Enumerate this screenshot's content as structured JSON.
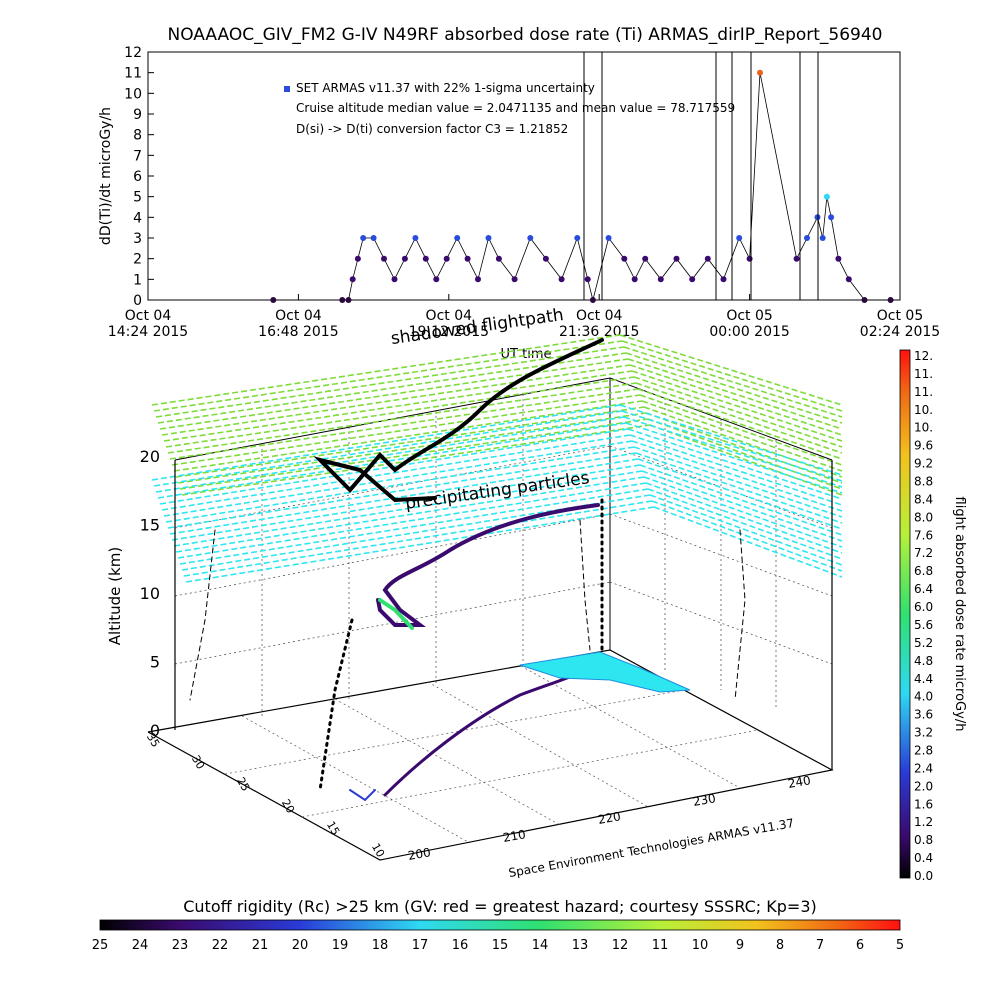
{
  "title": "NOAAAOC_GIV_FM2 G-IV    N49RF   absorbed dose rate (Ti) ARMAS_dirIP_Report_56940",
  "colors": {
    "series_marker": "#2a4bdc",
    "trace": "#4b1a8c",
    "cyan_plane": "#2ee6f0",
    "green_plane": "#7ddc3a"
  },
  "chart_data": [
    {
      "type": "scatter",
      "ylabel": "dD(Ti)/dt microGy/h",
      "xlabel": "UT time",
      "ylim": [
        0,
        12
      ],
      "yticks": [
        "0",
        "1",
        "2",
        "3",
        "4",
        "5",
        "6",
        "7",
        "8",
        "9",
        "10",
        "11",
        "12"
      ],
      "xticks": [
        {
          "date": "Oct 04",
          "time": "14:24 2015"
        },
        {
          "date": "Oct 04",
          "time": "16:48 2015"
        },
        {
          "date": "Oct 04",
          "time": "19:12 2015"
        },
        {
          "date": "Oct 04",
          "time": "21:36 2015"
        },
        {
          "date": "Oct 05",
          "time": "00:00 2015"
        },
        {
          "date": "Oct 05",
          "time": "02:24 2015"
        }
      ],
      "xlim": [
        "2015-10-04 14:24",
        "2015-10-05 02:24"
      ],
      "legend": [
        "SET ARMAS v11.37 with 22% 1-sigma uncertainty",
        "Cruise altitude median value = 2.0471135 and mean value = 78.717559",
        "D(si) -> D(ti) conversion factor C3 = 1.21852"
      ],
      "series": [
        {
          "name": "SET ARMAS v11.37 with 22% 1-sigma uncertainty",
          "points": [
            [
              "2015-10-04 16:24",
              0
            ],
            [
              "2015-10-04 17:30",
              0
            ],
            [
              "2015-10-04 17:36",
              0
            ],
            [
              "2015-10-04 17:40",
              1
            ],
            [
              "2015-10-04 17:45",
              2
            ],
            [
              "2015-10-04 17:50",
              3
            ],
            [
              "2015-10-04 18:00",
              3
            ],
            [
              "2015-10-04 18:10",
              2
            ],
            [
              "2015-10-04 18:20",
              1
            ],
            [
              "2015-10-04 18:30",
              2
            ],
            [
              "2015-10-04 18:40",
              3
            ],
            [
              "2015-10-04 18:50",
              2
            ],
            [
              "2015-10-04 19:00",
              1
            ],
            [
              "2015-10-04 19:10",
              2
            ],
            [
              "2015-10-04 19:20",
              3
            ],
            [
              "2015-10-04 19:30",
              2
            ],
            [
              "2015-10-04 19:40",
              1
            ],
            [
              "2015-10-04 19:50",
              3
            ],
            [
              "2015-10-04 20:00",
              2
            ],
            [
              "2015-10-04 20:15",
              1
            ],
            [
              "2015-10-04 20:30",
              3
            ],
            [
              "2015-10-04 20:45",
              2
            ],
            [
              "2015-10-04 21:00",
              1
            ],
            [
              "2015-10-04 21:15",
              3
            ],
            [
              "2015-10-04 21:25",
              1
            ],
            [
              "2015-10-04 21:30",
              0
            ],
            [
              "2015-10-04 21:45",
              3
            ],
            [
              "2015-10-04 22:00",
              2
            ],
            [
              "2015-10-04 22:10",
              1
            ],
            [
              "2015-10-04 22:20",
              2
            ],
            [
              "2015-10-04 22:35",
              1
            ],
            [
              "2015-10-04 22:50",
              2
            ],
            [
              "2015-10-04 23:05",
              1
            ],
            [
              "2015-10-04 23:20",
              2
            ],
            [
              "2015-10-04 23:35",
              1
            ],
            [
              "2015-10-04 23:50",
              3
            ],
            [
              "2015-10-05 00:00",
              2
            ],
            [
              "2015-10-05 00:10",
              11
            ],
            [
              "2015-10-05 00:45",
              2
            ],
            [
              "2015-10-05 00:55",
              3
            ],
            [
              "2015-10-05 01:05",
              4
            ],
            [
              "2015-10-05 01:10",
              3
            ],
            [
              "2015-10-05 01:14",
              5
            ],
            [
              "2015-10-05 01:18",
              4
            ],
            [
              "2015-10-05 01:25",
              2
            ],
            [
              "2015-10-05 01:35",
              1
            ],
            [
              "2015-10-05 01:50",
              0
            ],
            [
              "2015-10-05 02:15",
              0
            ]
          ]
        }
      ]
    },
    {
      "type": "scatter",
      "projection": "3d",
      "title": "shadowed flightpath",
      "plane_label": "precipitating particles",
      "zlabel": "Altitude (km)",
      "zticks": [
        "0",
        "5",
        "10",
        "15",
        "20"
      ],
      "xticks": [
        "200",
        "210",
        "220",
        "230",
        "240"
      ],
      "yticks": [
        "10",
        "15",
        "20",
        "25",
        "30",
        "35"
      ],
      "credit": "Space Environment Technologies ARMAS v11.37",
      "colorbar": {
        "label": "flight absorbed dose rate microGy/h",
        "ticks": [
          "12.",
          "11.",
          "11.",
          "10.",
          "10.",
          "9.6",
          "9.2",
          "8.8",
          "8.4",
          "8.0",
          "7.6",
          "7.2",
          "6.8",
          "6.4",
          "6.0",
          "5.6",
          "5.2",
          "4.8",
          "4.4",
          "4.0",
          "3.6",
          "3.2",
          "2.8",
          "2.4",
          "2.0",
          "1.6",
          "1.2",
          "0.8",
          "0.4",
          "0.0"
        ]
      }
    },
    {
      "type": "heatmap",
      "title": "Cutoff rigidity (Rc) >25 km (GV: red = greatest hazard; courtesy SSSRC; Kp=3)",
      "ticks": [
        "25",
        "24",
        "23",
        "22",
        "21",
        "20",
        "19",
        "18",
        "17",
        "16",
        "15",
        "14",
        "13",
        "12",
        "11",
        "10",
        "9",
        "8",
        "7",
        "6",
        "5"
      ]
    }
  ]
}
